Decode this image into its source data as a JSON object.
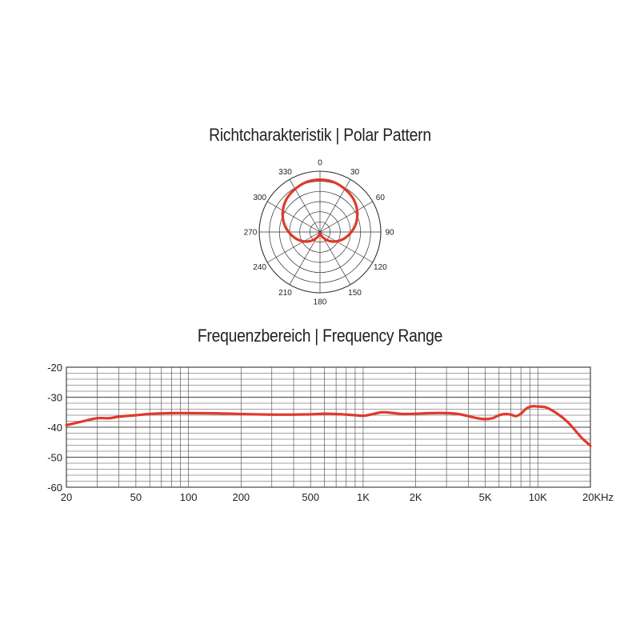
{
  "chart_data": [
    {
      "type": "polar",
      "title": "Richtcharakteristik | Polar Pattern",
      "angle_labels": [
        "0",
        "30",
        "60",
        "90",
        "120",
        "150",
        "180",
        "210",
        "240",
        "270",
        "300",
        "330"
      ],
      "radial_divisions": 6,
      "series": [
        {
          "color": "#e03a2a",
          "angles": [
            0,
            15,
            30,
            45,
            60,
            75,
            90,
            105,
            120,
            135,
            150,
            165,
            180,
            195,
            210,
            225,
            240,
            255,
            270,
            285,
            300,
            315,
            330,
            345
          ],
          "values": [
            1.0,
            0.99,
            0.95,
            0.9,
            0.82,
            0.72,
            0.6,
            0.48,
            0.36,
            0.24,
            0.13,
            0.05,
            0.03,
            0.05,
            0.13,
            0.24,
            0.36,
            0.48,
            0.6,
            0.72,
            0.82,
            0.9,
            0.95,
            0.99
          ]
        }
      ]
    },
    {
      "type": "line",
      "title": "Frequenzbereich | Frequency Range",
      "x_scale": "log",
      "xlim": [
        20,
        20000
      ],
      "ylim": [
        -60,
        -20
      ],
      "yticks": [
        -20,
        -30,
        -40,
        -50,
        -60
      ],
      "xticks": [
        {
          "value": 20,
          "label": "20"
        },
        {
          "value": 50,
          "label": "50"
        },
        {
          "value": 100,
          "label": "100"
        },
        {
          "value": 200,
          "label": "200"
        },
        {
          "value": 500,
          "label": "500"
        },
        {
          "value": 1000,
          "label": "1K"
        },
        {
          "value": 2000,
          "label": "2K"
        },
        {
          "value": 5000,
          "label": "5K"
        },
        {
          "value": 10000,
          "label": "10K"
        },
        {
          "value": 20000,
          "label": "20KHz"
        }
      ],
      "grid": true,
      "series": [
        {
          "color": "#e03a2a",
          "x": [
            20,
            25,
            30,
            35,
            40,
            50,
            60,
            70,
            80,
            100,
            150,
            200,
            300,
            400,
            500,
            600,
            700,
            800,
            900,
            1000,
            1100,
            1200,
            1300,
            1500,
            1700,
            2000,
            2500,
            3000,
            3500,
            4000,
            4500,
            5000,
            5500,
            6000,
            6500,
            7000,
            7500,
            8000,
            8500,
            9000,
            9500,
            10000,
            11000,
            12000,
            13000,
            14000,
            15000,
            16000,
            17000,
            18000,
            19000,
            20000
          ],
          "y": [
            -39.3,
            -38,
            -37,
            -37,
            -36.5,
            -36,
            -35.6,
            -35.4,
            -35.3,
            -35.3,
            -35.4,
            -35.6,
            -35.8,
            -35.8,
            -35.7,
            -35.5,
            -35.6,
            -35.8,
            -36,
            -36.2,
            -35.8,
            -35.3,
            -35,
            -35.3,
            -35.6,
            -35.5,
            -35.3,
            -35.3,
            -35.6,
            -36.3,
            -37,
            -37.3,
            -37,
            -36,
            -35.6,
            -35.8,
            -36.3,
            -35.5,
            -34,
            -33.2,
            -33,
            -33.1,
            -33.3,
            -34.3,
            -35.6,
            -37,
            -38.6,
            -40.4,
            -42.2,
            -43.8,
            -45,
            -46.2
          ]
        }
      ]
    }
  ]
}
